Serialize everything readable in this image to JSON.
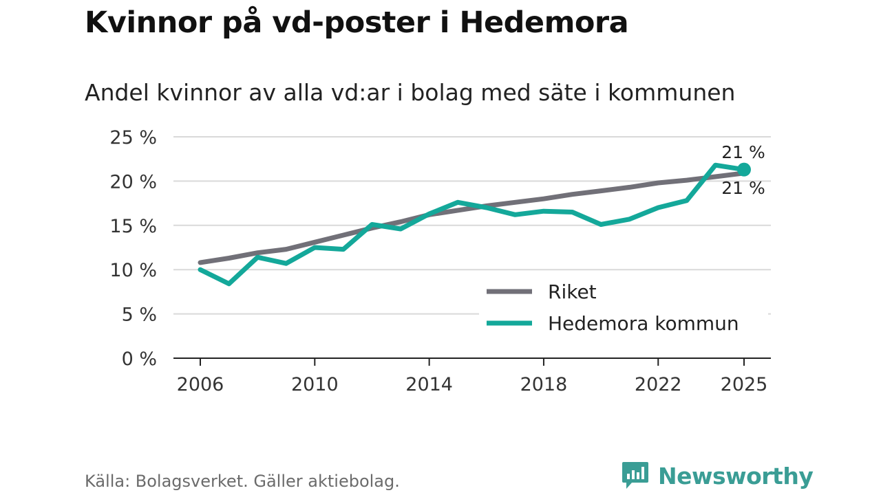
{
  "title": "Kvinnor på vd-poster i Hedemora",
  "subtitle": "Andel kvinnor av alla vd:ar i bolag med säte i kommunen",
  "source": "Källa: Bolagsverket. Gäller aktiebolag.",
  "brand": "Newsworthy",
  "colors": {
    "riket": "#717078",
    "hedemora": "#14a89a",
    "grid": "#d9d9d9",
    "axis": "#222222",
    "brand": "#3a9d95"
  },
  "chart_data": {
    "type": "line",
    "title": "Kvinnor på vd-poster i Hedemora",
    "subtitle": "Andel kvinnor av alla vd:ar i bolag med säte i kommunen",
    "x": [
      2006,
      2007,
      2008,
      2009,
      2010,
      2011,
      2012,
      2013,
      2014,
      2015,
      2016,
      2017,
      2018,
      2019,
      2020,
      2021,
      2022,
      2023,
      2024,
      2025
    ],
    "x_ticks": [
      2006,
      2010,
      2014,
      2018,
      2022,
      2025
    ],
    "x_tick_labels": [
      "2006",
      "2010",
      "2014",
      "2018",
      "2022",
      "2025"
    ],
    "y_ticks": [
      0,
      5,
      10,
      15,
      20,
      25
    ],
    "y_tick_labels": [
      "0 %",
      "5 %",
      "10 %",
      "15 %",
      "20 %",
      "25 %"
    ],
    "ylim": [
      0,
      25
    ],
    "xlim": [
      2006,
      2025
    ],
    "grid": true,
    "series": [
      {
        "name": "Riket",
        "color": "#717078",
        "values": [
          10.8,
          11.3,
          11.9,
          12.3,
          13.1,
          13.9,
          14.7,
          15.4,
          16.2,
          16.7,
          17.2,
          17.6,
          18.0,
          18.5,
          18.9,
          19.3,
          19.8,
          20.1,
          20.5,
          20.9
        ],
        "end_label": "21 %"
      },
      {
        "name": "Hedemora kommun",
        "color": "#14a89a",
        "values": [
          10.0,
          8.4,
          11.4,
          10.7,
          12.5,
          12.3,
          15.1,
          14.6,
          16.3,
          17.6,
          17.0,
          16.2,
          16.6,
          16.5,
          15.1,
          15.7,
          17.0,
          17.8,
          21.8,
          21.3
        ],
        "end_label": "21 %"
      }
    ],
    "legend": [
      "Riket",
      "Hedemora kommun"
    ],
    "legend_position": "bottom-right"
  }
}
